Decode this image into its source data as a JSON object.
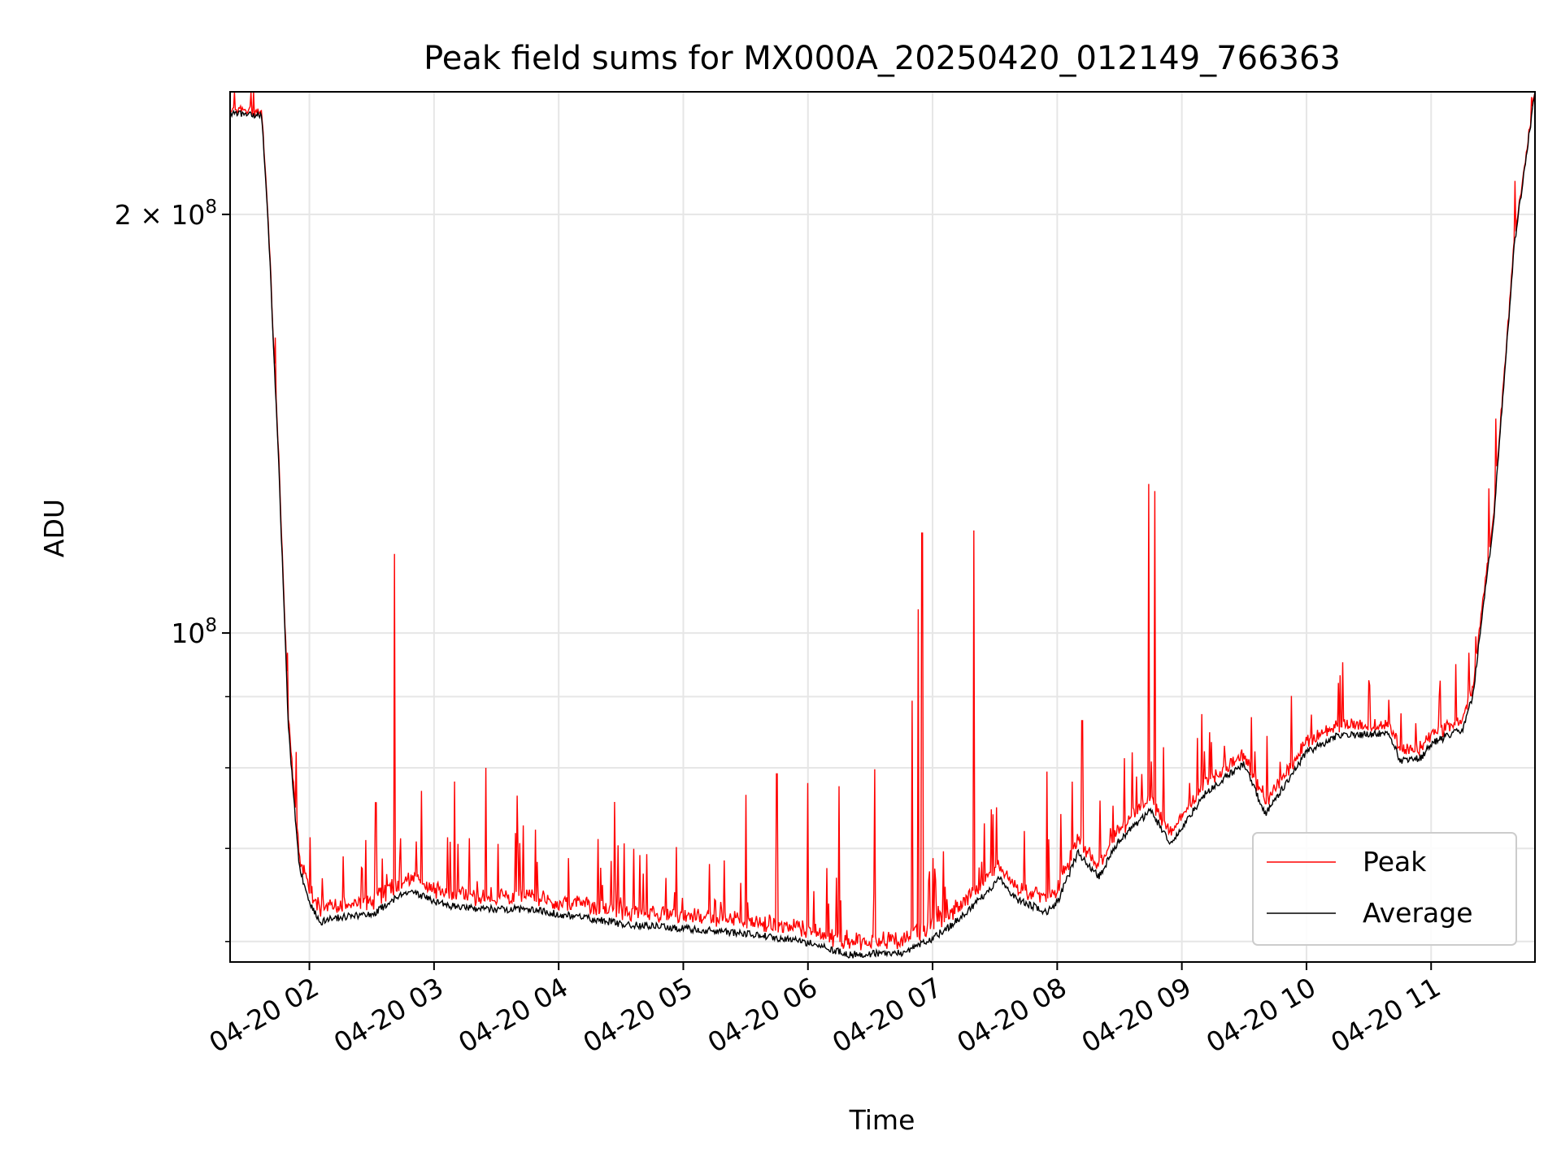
{
  "chart_data": {
    "type": "line",
    "title": "Peak field sums for MX000A_20250420_012149_766363",
    "xlabel": "Time",
    "ylabel": "ADU",
    "x_scale": "time",
    "y_scale": "log",
    "xlim": [
      "2025-04-20 01:21:49",
      "2025-04-20 11:50:00"
    ],
    "ylim": [
      58000000,
      245000000
    ],
    "xticks": [
      {
        "value": "2025-04-20 02:00",
        "label": "04-20 02"
      },
      {
        "value": "2025-04-20 03:00",
        "label": "04-20 03"
      },
      {
        "value": "2025-04-20 04:00",
        "label": "04-20 04"
      },
      {
        "value": "2025-04-20 05:00",
        "label": "04-20 05"
      },
      {
        "value": "2025-04-20 06:00",
        "label": "04-20 06"
      },
      {
        "value": "2025-04-20 07:00",
        "label": "04-20 07"
      },
      {
        "value": "2025-04-20 08:00",
        "label": "04-20 08"
      },
      {
        "value": "2025-04-20 09:00",
        "label": "04-20 09"
      },
      {
        "value": "2025-04-20 10:00",
        "label": "04-20 10"
      },
      {
        "value": "2025-04-20 11:00",
        "label": "04-20 11"
      }
    ],
    "yticks_major": [
      {
        "value": 100000000,
        "base": "10",
        "exp": "8"
      },
      {
        "value": 200000000,
        "base": "2 × 10",
        "exp": "8"
      }
    ],
    "yticks_minor": [
      60000000,
      70000000,
      80000000,
      90000000
    ],
    "grid": true,
    "legend_position": "lower-right",
    "colors": {
      "peak": "#ff0000",
      "average": "#000000",
      "grid": "#e6e6e6"
    },
    "series": [
      {
        "name": "Average",
        "color": "#000000",
        "points": [
          [
            "2025-04-20 01:21:49",
            236000000
          ],
          [
            "2025-04-20 01:37:00",
            236000000
          ],
          [
            "2025-04-20 01:40:00",
            200000000
          ],
          [
            "2025-04-20 01:45:00",
            135000000
          ],
          [
            "2025-04-20 01:50:00",
            85000000
          ],
          [
            "2025-04-20 01:55:00",
            68000000
          ],
          [
            "2025-04-20 02:00:00",
            64000000
          ],
          [
            "2025-04-20 02:05:00",
            62000000
          ],
          [
            "2025-04-20 02:15:00",
            62500000
          ],
          [
            "2025-04-20 02:30:00",
            62700000
          ],
          [
            "2025-04-20 02:45:00",
            65000000
          ],
          [
            "2025-04-20 02:50:00",
            65200000
          ],
          [
            "2025-04-20 03:00:00",
            64000000
          ],
          [
            "2025-04-20 03:15:00",
            63400000
          ],
          [
            "2025-04-20 03:30:00",
            63300000
          ],
          [
            "2025-04-20 03:45:00",
            63300000
          ],
          [
            "2025-04-20 04:00:00",
            62800000
          ],
          [
            "2025-04-20 04:30:00",
            61800000
          ],
          [
            "2025-04-20 05:00:00",
            61300000
          ],
          [
            "2025-04-20 05:30:00",
            60800000
          ],
          [
            "2025-04-20 06:00:00",
            59900000
          ],
          [
            "2025-04-20 06:20:00",
            58700000
          ],
          [
            "2025-04-20 06:45:00",
            58900000
          ],
          [
            "2025-04-20 07:00:00",
            60300000
          ],
          [
            "2025-04-20 07:10:00",
            61800000
          ],
          [
            "2025-04-20 07:25:00",
            64800000
          ],
          [
            "2025-04-20 07:32:00",
            66600000
          ],
          [
            "2025-04-20 07:40:00",
            64400000
          ],
          [
            "2025-04-20 07:55:00",
            63000000
          ],
          [
            "2025-04-20 08:00:00",
            64000000
          ],
          [
            "2025-04-20 08:10:00",
            69500000
          ],
          [
            "2025-04-20 08:20:00",
            66800000
          ],
          [
            "2025-04-20 08:30:00",
            71000000
          ],
          [
            "2025-04-20 08:45:00",
            74500000
          ],
          [
            "2025-04-20 08:55:00",
            70400000
          ],
          [
            "2025-04-20 09:10:00",
            76300000
          ],
          [
            "2025-04-20 09:20:00",
            78600000
          ],
          [
            "2025-04-20 09:30:00",
            80600000
          ],
          [
            "2025-04-20 09:40:00",
            74100000
          ],
          [
            "2025-04-20 10:00:00",
            82000000
          ],
          [
            "2025-04-20 10:15:00",
            84400000
          ],
          [
            "2025-04-20 10:40:00",
            84700000
          ],
          [
            "2025-04-20 10:45:00",
            81000000
          ],
          [
            "2025-04-20 10:55:00",
            81300000
          ],
          [
            "2025-04-20 11:00:00",
            83300000
          ],
          [
            "2025-04-20 11:15:00",
            85200000
          ],
          [
            "2025-04-20 11:20:00",
            90000000
          ],
          [
            "2025-04-20 11:30:00",
            120000000
          ],
          [
            "2025-04-20 11:40:00",
            190000000
          ],
          [
            "2025-04-20 11:50:00",
            245000000
          ]
        ]
      },
      {
        "name": "Peak",
        "color": "#ff0000",
        "baseline_offset": 1500000,
        "spikes": [
          [
            "2025-04-20 02:32:00",
            75500000
          ],
          [
            "2025-04-20 02:41:00",
            114000000
          ],
          [
            "2025-04-20 02:54:00",
            77000000
          ],
          [
            "2025-04-20 03:10:00",
            78200000
          ],
          [
            "2025-04-20 03:25:00",
            80000000
          ],
          [
            "2025-04-20 03:40:00",
            76400000
          ],
          [
            "2025-04-20 04:27:00",
            75600000
          ],
          [
            "2025-04-20 05:30:00",
            76500000
          ],
          [
            "2025-04-20 05:45:00",
            79200000
          ],
          [
            "2025-04-20 06:00:00",
            78000000
          ],
          [
            "2025-04-20 06:15:00",
            77600000
          ],
          [
            "2025-04-20 06:32:00",
            79800000
          ],
          [
            "2025-04-20 06:50:00",
            89400000
          ],
          [
            "2025-04-20 06:53:00",
            104000000
          ],
          [
            "2025-04-20 06:55:00",
            118000000
          ],
          [
            "2025-04-20 07:20:00",
            118500000
          ],
          [
            "2025-04-20 07:55:00",
            79500000
          ],
          [
            "2025-04-20 08:12:00",
            86500000
          ],
          [
            "2025-04-20 08:44:00",
            128000000
          ],
          [
            "2025-04-20 08:47:00",
            126500000
          ]
        ]
      }
    ]
  }
}
